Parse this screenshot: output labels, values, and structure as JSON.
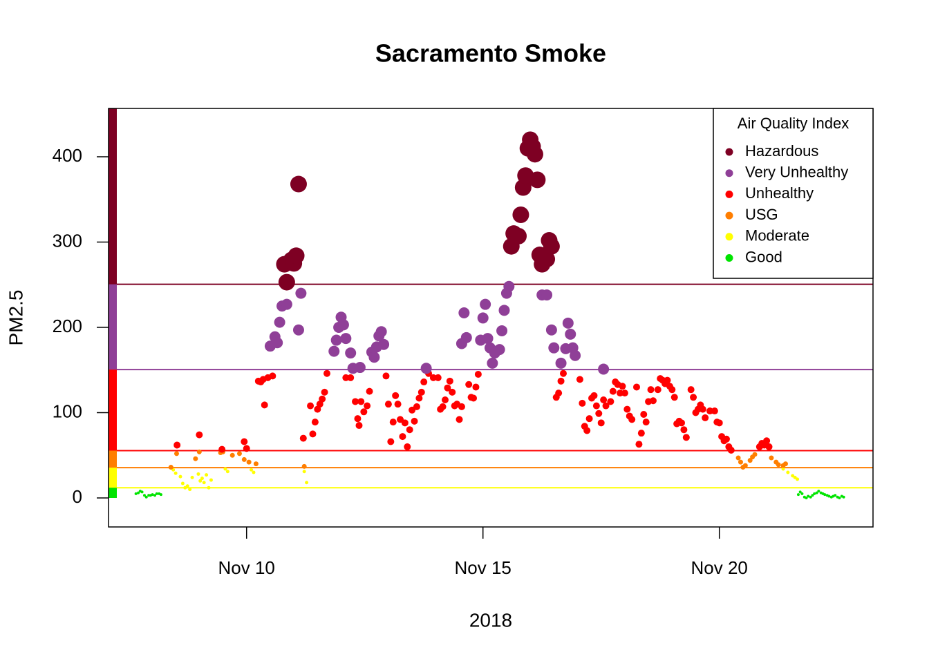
{
  "chart_data": {
    "type": "scatter",
    "title": "Sacramento Smoke",
    "x_label": "2018",
    "y_label": "PM2.5",
    "legend_title": "Air Quality Index",
    "legend": "top-right",
    "xlim": [
      7.08,
      23.25
    ],
    "ylim": [
      -34,
      456.7
    ],
    "xticks": [
      {
        "value": 10,
        "label": "Nov 10"
      },
      {
        "value": 15,
        "label": "Nov 15"
      },
      {
        "value": 20,
        "label": "Nov 20"
      }
    ],
    "yticks": [
      0,
      100,
      200,
      300,
      400
    ],
    "series": [
      {
        "name": "Hazardous",
        "color": "#7E0023",
        "lower": 250.5,
        "x": [
          10.8,
          10.85,
          10.95,
          11.0,
          11.05,
          11.1,
          15.6,
          15.65,
          15.75,
          15.8,
          15.85,
          15.9,
          15.95,
          16.0,
          16.05,
          16.1,
          16.15,
          16.2,
          16.25,
          16.35,
          16.4,
          16.45
        ],
        "values": [
          274,
          253,
          279,
          275,
          284,
          368,
          295,
          310,
          307,
          332,
          364,
          378,
          410,
          420,
          412,
          403,
          373,
          285,
          274,
          280,
          302,
          295
        ]
      },
      {
        "name": "Very Unhealthy",
        "color": "#8F3F97",
        "lower": 150.5,
        "x": [
          10.5,
          10.6,
          10.65,
          10.7,
          10.75,
          10.85,
          11.1,
          11.15,
          11.85,
          11.9,
          11.95,
          12.0,
          12.05,
          12.1,
          12.2,
          12.25,
          12.4,
          12.65,
          12.7,
          12.75,
          12.8,
          12.85,
          12.9,
          13.8,
          14.55,
          14.6,
          14.65,
          14.95,
          15.0,
          15.05,
          15.1,
          15.15,
          15.2,
          15.25,
          15.35,
          15.4,
          15.45,
          15.5,
          15.55,
          16.25,
          16.35,
          16.45,
          16.5,
          16.65,
          16.75,
          16.8,
          16.85,
          16.9,
          16.95,
          17.55
        ],
        "values": [
          178,
          189,
          182,
          206,
          225,
          227,
          197,
          240,
          172,
          185,
          200,
          212,
          203,
          187,
          170,
          152,
          153,
          171,
          165,
          177,
          190,
          195,
          180,
          152,
          181,
          217,
          188,
          185,
          211,
          227,
          187,
          176,
          158,
          170,
          174,
          196,
          220,
          240,
          248,
          238,
          238,
          197,
          176,
          158,
          175,
          205,
          192,
          176,
          167,
          151
        ]
      },
      {
        "name": "Unhealthy",
        "color": "#FF0000",
        "lower": 55.5,
        "x": [
          8.53,
          9.0,
          9.48,
          9.95,
          10.0,
          10.25,
          10.3,
          10.35,
          10.38,
          10.45,
          10.55,
          11.2,
          11.35,
          11.4,
          11.45,
          11.5,
          11.55,
          11.6,
          11.65,
          11.7,
          12.1,
          12.2,
          12.3,
          12.35,
          12.38,
          12.42,
          12.48,
          12.55,
          12.6,
          12.95,
          13.0,
          13.05,
          13.1,
          13.15,
          13.2,
          13.25,
          13.3,
          13.35,
          13.4,
          13.45,
          13.5,
          13.55,
          13.6,
          13.65,
          13.7,
          13.75,
          13.85,
          13.95,
          14.05,
          14.1,
          14.15,
          14.2,
          14.25,
          14.3,
          14.35,
          14.4,
          14.45,
          14.5,
          14.55,
          14.7,
          14.75,
          14.8,
          14.85,
          14.9,
          16.55,
          16.6,
          16.65,
          16.7,
          17.05,
          17.1,
          17.15,
          17.2,
          17.25,
          17.3,
          17.35,
          17.4,
          17.45,
          17.5,
          17.55,
          17.6,
          17.7,
          17.75,
          17.8,
          17.85,
          17.9,
          17.95,
          18.0,
          18.05,
          18.1,
          18.15,
          18.25,
          18.3,
          18.35,
          18.4,
          18.45,
          18.5,
          18.55,
          18.6,
          18.7,
          18.75,
          18.8,
          18.85,
          18.9,
          18.95,
          19.0,
          19.05,
          19.1,
          19.15,
          19.2,
          19.25,
          19.3,
          19.4,
          19.45,
          19.5,
          19.55,
          19.6,
          19.65,
          19.7,
          19.8,
          19.9,
          19.95,
          20.0,
          20.05,
          20.1,
          20.15,
          20.2,
          20.25,
          20.85,
          20.9,
          20.95,
          21.0,
          21.05
        ],
        "values": [
          62,
          74,
          57,
          66,
          58,
          137,
          136,
          139,
          109,
          141,
          143,
          70,
          108,
          75,
          89,
          104,
          110,
          116,
          124,
          146,
          141,
          141,
          113,
          93,
          85,
          113,
          101,
          108,
          125,
          143,
          110,
          66,
          89,
          120,
          110,
          92,
          72,
          88,
          60,
          80,
          103,
          90,
          107,
          117,
          124,
          136,
          146,
          141,
          141,
          104,
          107,
          115,
          129,
          137,
          124,
          108,
          110,
          92,
          107,
          133,
          118,
          117,
          130,
          145,
          118,
          123,
          137,
          146,
          139,
          111,
          84,
          79,
          93,
          117,
          120,
          108,
          99,
          88,
          115,
          108,
          113,
          125,
          136,
          133,
          123,
          131,
          123,
          104,
          96,
          92,
          130,
          63,
          76,
          98,
          89,
          113,
          127,
          114,
          127,
          140,
          138,
          134,
          138,
          131,
          127,
          118,
          87,
          90,
          88,
          80,
          71,
          127,
          118,
          100,
          104,
          109,
          104,
          94,
          102,
          102,
          89,
          88,
          72,
          67,
          69,
          60,
          56,
          60,
          64,
          62,
          67,
          60
        ]
      },
      {
        "name": "USG",
        "color": "#FF7E00",
        "lower": 35.5,
        "x": [
          8.4,
          8.52,
          8.92,
          9.0,
          9.45,
          9.5,
          9.7,
          9.85,
          9.95,
          10.05,
          10.2,
          11.22,
          20.4,
          20.45,
          20.5,
          20.55,
          20.65,
          20.7,
          20.75,
          21.1,
          21.2,
          21.25,
          21.35,
          21.4
        ],
        "values": [
          36,
          52,
          46,
          54,
          53,
          54,
          50,
          52,
          45,
          42,
          40,
          37,
          47,
          42,
          36,
          38,
          44,
          48,
          51,
          47,
          42,
          39,
          38,
          40
        ]
      },
      {
        "name": "Moderate",
        "color": "#FFFF00",
        "lower": 12,
        "x": [
          8.45,
          8.5,
          8.6,
          8.65,
          8.7,
          8.75,
          8.8,
          8.85,
          8.98,
          9.02,
          9.06,
          9.1,
          9.15,
          9.2,
          9.25,
          9.55,
          9.6,
          10.1,
          10.15,
          11.22,
          11.27,
          21.35,
          21.45,
          21.55,
          21.6,
          21.65
        ],
        "values": [
          33,
          29,
          25,
          17,
          12,
          14,
          10,
          24,
          28,
          20,
          23,
          18,
          27,
          12,
          21,
          34,
          31,
          33,
          30,
          31,
          18,
          34,
          30,
          26,
          24,
          22
        ]
      },
      {
        "name": "Good",
        "color": "#00E400",
        "lower": 0,
        "x": [
          7.66,
          7.71,
          7.75,
          7.79,
          7.84,
          7.88,
          7.93,
          7.97,
          8.01,
          8.06,
          8.1,
          8.15,
          8.19,
          21.67,
          21.71,
          21.75,
          21.8,
          21.84,
          21.88,
          21.93,
          21.97,
          22.01,
          22.06,
          22.1,
          22.15,
          22.19,
          22.23,
          22.28,
          22.32,
          22.37,
          22.41,
          22.45,
          22.5,
          22.54,
          22.59,
          22.63
        ],
        "values": [
          5,
          6,
          8,
          7,
          3,
          1,
          3,
          3,
          4,
          3,
          5,
          5,
          4,
          4,
          7,
          5,
          1,
          0,
          2,
          1,
          3,
          5,
          6,
          8,
          6,
          5,
          4,
          3,
          2,
          1,
          2,
          3,
          1,
          0,
          2,
          1
        ]
      }
    ]
  }
}
